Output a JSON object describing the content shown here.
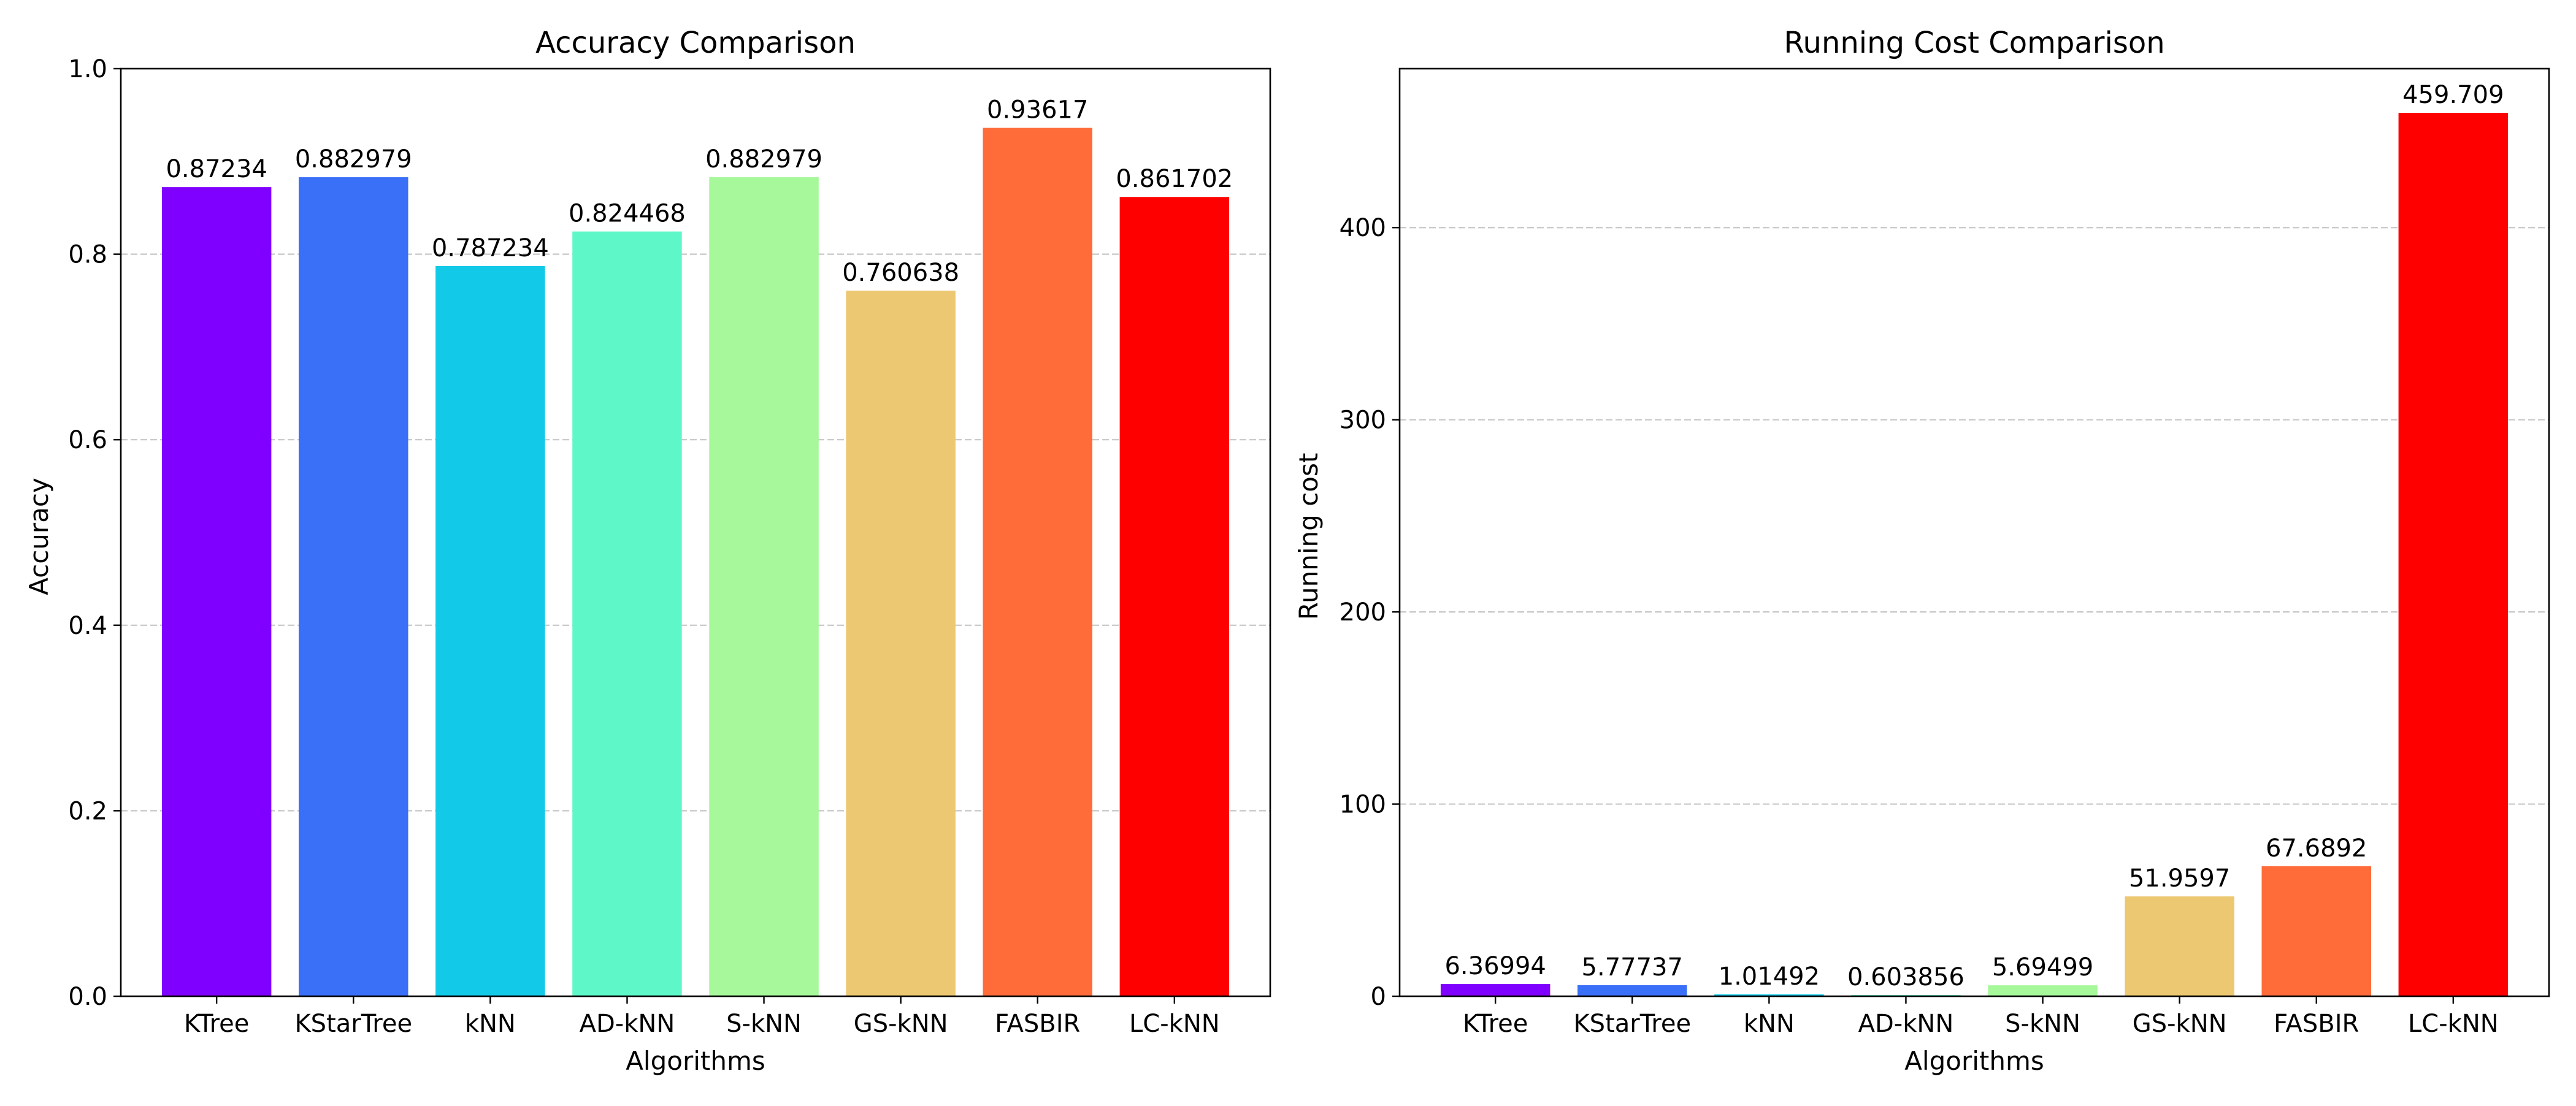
{
  "chart_data": [
    {
      "type": "bar",
      "title": "Accuracy Comparison",
      "xlabel": "Algorithms",
      "ylabel": "Accuracy",
      "categories": [
        "KTree",
        "KStarTree",
        "kNN",
        "AD-kNN",
        "S-kNN",
        "GS-kNN",
        "FASBIR",
        "LC-kNN"
      ],
      "values": [
        0.87234,
        0.882979,
        0.787234,
        0.824468,
        0.882979,
        0.760638,
        0.93617,
        0.861702
      ],
      "value_labels": [
        "0.87234",
        "0.882979",
        "0.787234",
        "0.824468",
        "0.882979",
        "0.760638",
        "0.93617",
        "0.861702"
      ],
      "colors": [
        "#8000ff",
        "#3a6ff8",
        "#13c9e8",
        "#5ef8c8",
        "#a6f89a",
        "#ecc872",
        "#ff6c3a",
        "#ff0000"
      ],
      "ylim": [
        0,
        1.0
      ],
      "yticks": [
        0.0,
        0.2,
        0.4,
        0.6,
        0.8,
        1.0
      ],
      "ytick_labels": [
        "0.0",
        "0.2",
        "0.4",
        "0.6",
        "0.8",
        "1.0"
      ],
      "grid": "y-dashed",
      "legend": "none"
    },
    {
      "type": "bar",
      "title": "Running Cost Comparison",
      "xlabel": "Algorithms",
      "ylabel": "Running cost",
      "categories": [
        "KTree",
        "KStarTree",
        "kNN",
        "AD-kNN",
        "S-kNN",
        "GS-kNN",
        "FASBIR",
        "LC-kNN"
      ],
      "values": [
        6.36994,
        5.77737,
        1.01492,
        0.603856,
        5.69499,
        51.9597,
        67.6892,
        459.709
      ],
      "value_labels": [
        "6.36994",
        "5.77737",
        "1.01492",
        "0.603856",
        "5.69499",
        "51.9597",
        "67.6892",
        "459.709"
      ],
      "colors": [
        "#8000ff",
        "#3a6ff8",
        "#13c9e8",
        "#5ef8c8",
        "#a6f89a",
        "#ecc872",
        "#ff6c3a",
        "#ff0000"
      ],
      "ylim": [
        0,
        482.7
      ],
      "yticks": [
        0,
        100,
        200,
        300,
        400
      ],
      "ytick_labels": [
        "0",
        "100",
        "200",
        "300",
        "400"
      ],
      "grid": "y-dashed",
      "legend": "none"
    }
  ]
}
